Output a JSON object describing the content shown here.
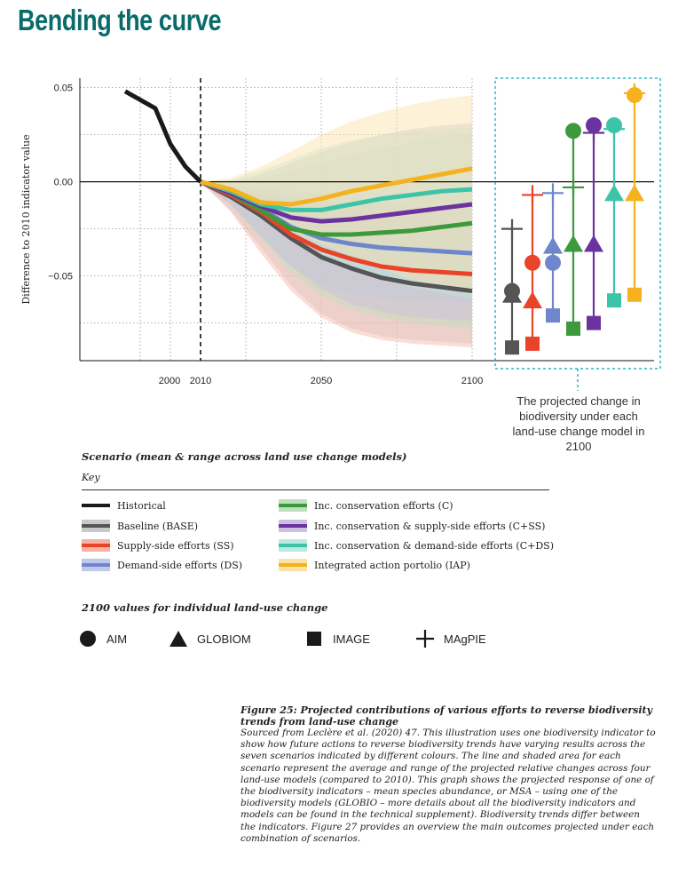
{
  "page_title": "Bending the curve",
  "callout_text": "The projected change in biodiversity under each land-use change model in 2100",
  "legend": {
    "heading": "Scenario (mean & range across land use change models)",
    "subheading": "Key",
    "items": [
      {
        "label": "Historical",
        "color": "#1a1a1a",
        "band": null
      },
      {
        "label": "Baseline (BASE)",
        "color": "#555555",
        "band": "#c9c9c9"
      },
      {
        "label": "Supply-side efforts (SS)",
        "color": "#e8442a",
        "band": "#f3b4a6"
      },
      {
        "label": "Demand-side efforts (DS)",
        "color": "#6d86cc",
        "band": "#bfc9e9"
      },
      {
        "label": "Inc. conservation efforts (C)",
        "color": "#3c9a3c",
        "band": "#bfe0bd"
      },
      {
        "label": "Inc. conservation & supply-side efforts (C+SS)",
        "color": "#6a33a0",
        "band": "#cdbfe0"
      },
      {
        "label": "Inc. conservation & demand-side efforts (C+DS)",
        "color": "#3cc4a8",
        "band": "#bde9de"
      },
      {
        "label": "Integrated action portolio (IAP)",
        "color": "#f5b21e",
        "band": "#fbe3a8"
      }
    ]
  },
  "markers_legend": {
    "heading": "2100 values for individual land-use change",
    "items": [
      {
        "label": "AIM",
        "shape": "circle"
      },
      {
        "label": "GLOBIOM",
        "shape": "triangle"
      },
      {
        "label": "IMAGE",
        "shape": "square"
      },
      {
        "label": "MAgPIE",
        "shape": "plus"
      }
    ]
  },
  "caption": {
    "title": "Figure 25: Projected contributions of various efforts to reverse biodiversity trends from land-use change",
    "body": "Sourced from Leclère et al. (2020) 47. This illustration uses one biodiversity indicator to show how future actions to reverse biodiversity trends have varying results across the seven scenarios indicated by different colours. The line and shaded area for each scenario represent the average and range of the projected relative changes across four land-use models (compared to 2010). This graph shows the projected response of one of the biodiversity indicators – mean species abundance, or MSA – using one of the biodiversity models (GLOBIO – more details about all the biodiversity indicators and models can be found in the technical supplement). Biodiversity trends differ between the indicators. Figure 27 provides an overview the main outcomes projected under each combination of scenarios."
  },
  "chart_data": {
    "type": "line",
    "ylabel": "Difference to 2010 indicator value",
    "xlim": [
      1970,
      2100
    ],
    "ylim": [
      -0.095,
      0.055
    ],
    "x_ticks": [
      2000,
      2010,
      2050,
      2100
    ],
    "y_ticks": [
      0.05,
      0.0,
      -0.05
    ],
    "y_tick_labels": [
      "0.05",
      "0.00",
      "−0.05"
    ],
    "projection_start": 2010,
    "historical": {
      "x": [
        1985,
        1995,
        2000,
        2005,
        2010
      ],
      "y": [
        0.048,
        0.039,
        0.02,
        0.008,
        0.0
      ]
    },
    "x": [
      2010,
      2020,
      2030,
      2040,
      2050,
      2060,
      2070,
      2080,
      2090,
      2100
    ],
    "series": [
      {
        "name": "Baseline (BASE)",
        "mean": [
          0,
          -0.008,
          -0.018,
          -0.03,
          -0.04,
          -0.046,
          -0.051,
          -0.054,
          -0.056,
          -0.058
        ],
        "low": [
          0,
          -0.015,
          -0.035,
          -0.055,
          -0.07,
          -0.078,
          -0.082,
          -0.084,
          -0.085,
          -0.086
        ],
        "high": [
          0,
          -0.004,
          -0.008,
          -0.01,
          -0.012,
          -0.014,
          -0.016,
          -0.018,
          -0.02,
          -0.022
        ]
      },
      {
        "name": "Supply-side efforts (SS)",
        "mean": [
          0,
          -0.007,
          -0.016,
          -0.028,
          -0.036,
          -0.041,
          -0.045,
          -0.047,
          -0.048,
          -0.049
        ],
        "low": [
          0,
          -0.016,
          -0.038,
          -0.058,
          -0.072,
          -0.08,
          -0.084,
          -0.086,
          -0.087,
          -0.088
        ],
        "high": [
          0,
          -0.003,
          -0.006,
          -0.008,
          -0.01,
          -0.011,
          -0.012,
          -0.013,
          -0.013,
          -0.014
        ]
      },
      {
        "name": "Demand-side efforts (DS)",
        "mean": [
          0,
          -0.006,
          -0.014,
          -0.024,
          -0.03,
          -0.033,
          -0.035,
          -0.036,
          -0.037,
          -0.038
        ],
        "low": [
          0,
          -0.012,
          -0.03,
          -0.045,
          -0.055,
          -0.06,
          -0.062,
          -0.063,
          -0.064,
          -0.064
        ],
        "high": [
          0,
          -0.002,
          -0.004,
          -0.005,
          -0.006,
          -0.006,
          -0.006,
          -0.006,
          -0.006,
          -0.006
        ]
      },
      {
        "name": "Inc. conservation efforts (C)",
        "mean": [
          0,
          -0.006,
          -0.015,
          -0.025,
          -0.028,
          -0.028,
          -0.027,
          -0.026,
          -0.024,
          -0.022
        ],
        "low": [
          0,
          -0.012,
          -0.03,
          -0.048,
          -0.06,
          -0.068,
          -0.072,
          -0.075,
          -0.077,
          -0.078
        ],
        "high": [
          0,
          0.0,
          0.002,
          0.006,
          0.01,
          0.014,
          0.018,
          0.021,
          0.024,
          0.026
        ]
      },
      {
        "name": "Inc. conservation & supply-side efforts (C+SS)",
        "mean": [
          0,
          -0.006,
          -0.013,
          -0.019,
          -0.021,
          -0.02,
          -0.018,
          -0.016,
          -0.014,
          -0.012
        ],
        "low": [
          0,
          -0.012,
          -0.028,
          -0.045,
          -0.057,
          -0.065,
          -0.069,
          -0.072,
          -0.073,
          -0.074
        ],
        "high": [
          0,
          0.0,
          0.004,
          0.01,
          0.016,
          0.021,
          0.025,
          0.028,
          0.03,
          0.031
        ]
      },
      {
        "name": "Inc. conservation & demand-side efforts (C+DS)",
        "mean": [
          0,
          -0.005,
          -0.012,
          -0.015,
          -0.015,
          -0.012,
          -0.009,
          -0.007,
          -0.005,
          -0.004
        ],
        "low": [
          0,
          -0.01,
          -0.02,
          -0.03,
          -0.04,
          -0.047,
          -0.052,
          -0.056,
          -0.059,
          -0.062
        ],
        "high": [
          0,
          0.001,
          0.006,
          0.012,
          0.018,
          0.022,
          0.025,
          0.027,
          0.028,
          0.029
        ]
      },
      {
        "name": "Integrated action portolio (IAP)",
        "mean": [
          0,
          -0.004,
          -0.011,
          -0.012,
          -0.009,
          -0.005,
          -0.002,
          0.001,
          0.004,
          0.007
        ],
        "low": [
          0,
          -0.009,
          -0.018,
          -0.026,
          -0.033,
          -0.039,
          -0.046,
          -0.052,
          -0.056,
          -0.06
        ],
        "high": [
          0,
          0.002,
          0.008,
          0.016,
          0.025,
          0.032,
          0.037,
          0.041,
          0.044,
          0.046
        ]
      }
    ],
    "model_values_2100": [
      {
        "scenario": "Baseline (BASE)",
        "AIM": -0.058,
        "GLOBIOM": -0.06,
        "IMAGE": -0.088,
        "MAgPIE": -0.025
      },
      {
        "scenario": "Supply-side efforts (SS)",
        "AIM": -0.043,
        "GLOBIOM": -0.063,
        "IMAGE": -0.086,
        "MAgPIE": -0.007
      },
      {
        "scenario": "Demand-side efforts (DS)",
        "AIM": -0.043,
        "GLOBIOM": -0.034,
        "IMAGE": -0.071,
        "MAgPIE": -0.006
      },
      {
        "scenario": "Inc. conservation efforts (C)",
        "AIM": 0.027,
        "GLOBIOM": -0.033,
        "IMAGE": -0.078,
        "MAgPIE": -0.003
      },
      {
        "scenario": "Inc. conservation & supply-side efforts (C+SS)",
        "AIM": 0.03,
        "GLOBIOM": -0.033,
        "IMAGE": -0.075,
        "MAgPIE": 0.026
      },
      {
        "scenario": "Inc. conservation & demand-side efforts (C+DS)",
        "AIM": 0.03,
        "GLOBIOM": -0.006,
        "IMAGE": -0.063,
        "MAgPIE": 0.028
      },
      {
        "scenario": "Integrated action portolio (IAP)",
        "AIM": 0.046,
        "GLOBIOM": -0.006,
        "IMAGE": -0.06,
        "MAgPIE": 0.047
      }
    ]
  }
}
